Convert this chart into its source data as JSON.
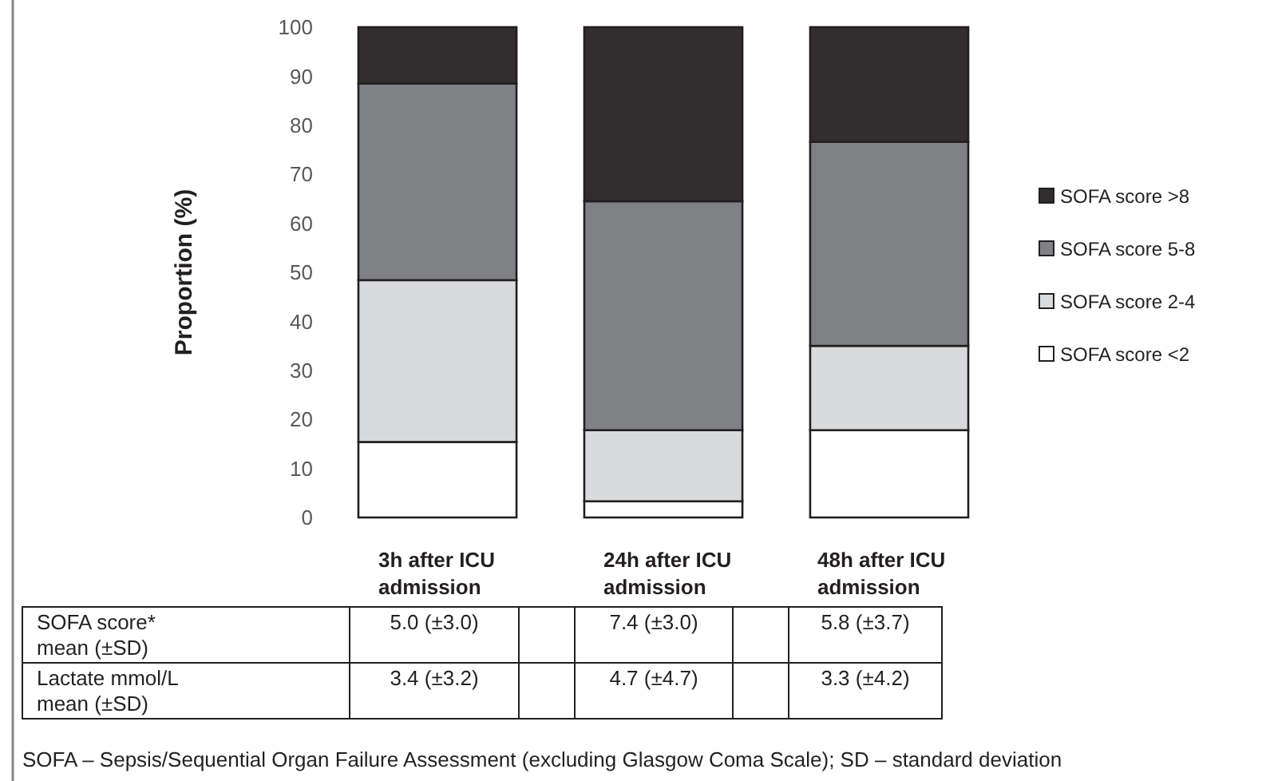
{
  "chart_data": {
    "type": "bar",
    "stacked": true,
    "ylabel": "Proportion (%)",
    "categories": [
      "3h after ICU admission",
      "24h after ICU admission",
      "48h after ICU admission"
    ],
    "series": [
      {
        "name": "SOFA score <2",
        "color": "#ffffff",
        "values": [
          15.4,
          3.3,
          17.8
        ]
      },
      {
        "name": "SOFA score 2-4",
        "color": "#d9dadc",
        "values": [
          33.0,
          14.5,
          17.2
        ]
      },
      {
        "name": "SOFA score 5-8",
        "color": "#808184",
        "values": [
          40.1,
          46.7,
          41.6
        ]
      },
      {
        "name": "SOFA score >8",
        "color": "#302e2f",
        "values": [
          11.5,
          35.5,
          23.4
        ]
      }
    ],
    "ylim": [
      0,
      100
    ],
    "yticks": [
      0,
      10,
      20,
      30,
      40,
      50,
      60,
      70,
      80,
      90,
      100
    ],
    "grid": false,
    "legend": "right",
    "annotations": [
      "SOFA score*\nmean (±SD)",
      "5.0 (±3.0)",
      "7.4 (±3.0)",
      "5.8 (±3.7)",
      "Lactate mmol/L\nmean (±SD)",
      "3.4 (±3.2)",
      "4.7 (±4.7)",
      "3.3 (±4.2)",
      "SOFA – Sepsis/Sequential Organ Failure Assessment (excluding Glasgow Coma Scale);  SD – standard deviation"
    ]
  }
}
